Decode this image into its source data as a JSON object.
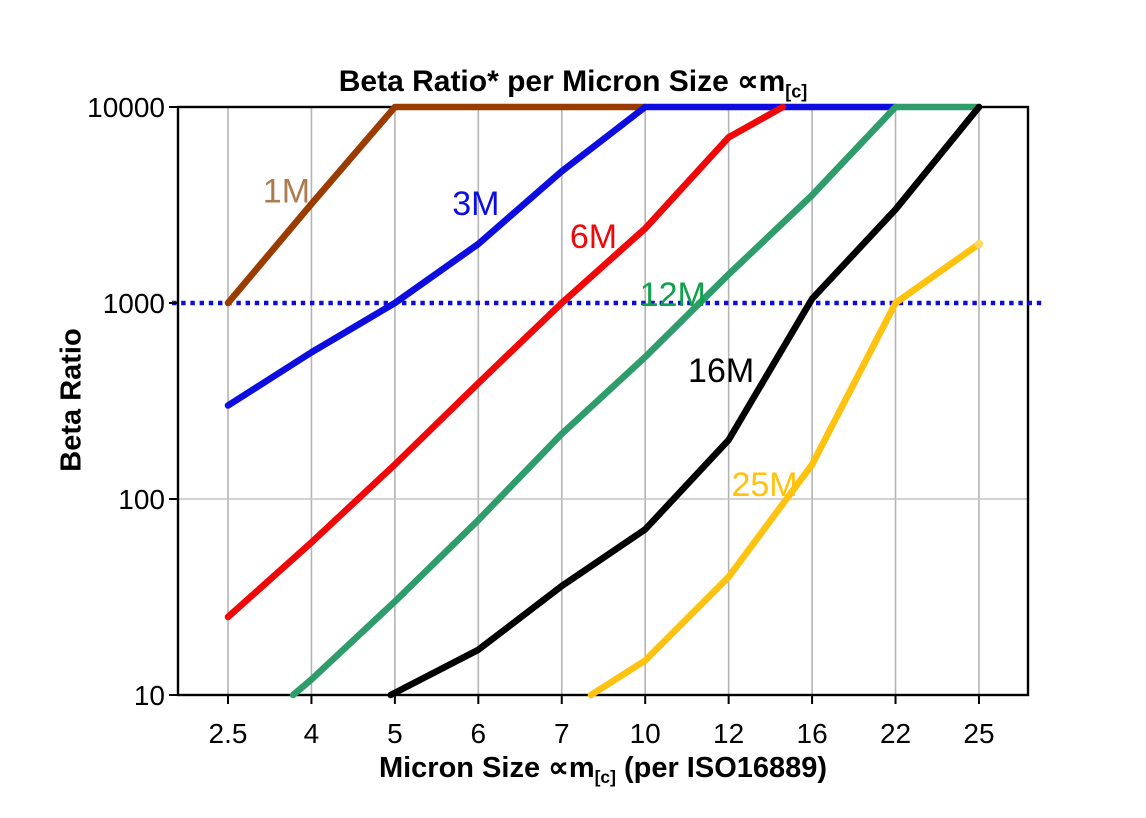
{
  "chart": {
    "title_pre": "Beta Ratio* per Micron Size ∝m",
    "title_sub": "[c]",
    "y_axis_label": "Beta Ratio",
    "x_label_pre": "Micron Size ∝m",
    "x_label_sub": "[c]",
    "x_label_post": " (per ISO16889)"
  },
  "chart_data": {
    "type": "line",
    "title": "Beta Ratio* per Micron Size ∝m[c]",
    "xlabel": "Micron Size ∝m[c] (per ISO16889)",
    "ylabel": "Beta Ratio",
    "x_type": "categorical",
    "categories": [
      "2.5",
      "4",
      "5",
      "6",
      "7",
      "10",
      "12",
      "16",
      "22",
      "25"
    ],
    "y_scale": "log",
    "ylim": [
      10,
      10000
    ],
    "y_tick_labels": [
      "10",
      "100",
      "1000",
      "10000"
    ],
    "grid": {
      "vertical": true,
      "horizontal": true
    },
    "legend_position": "inline-labels",
    "reference_line": {
      "value": 1000,
      "style": "dotted",
      "color": "#0d0dd6"
    },
    "colors": {
      "gridline": "#b4b4b4",
      "axis_border": "#000000",
      "background": "#ffffff"
    },
    "series": [
      {
        "name": "1M",
        "color": "#9a3b00",
        "label_color": "#ab7c50",
        "points": [
          [
            0,
            1000
          ],
          [
            1,
            3200
          ],
          [
            2,
            10000
          ],
          [
            3,
            10000
          ],
          [
            4,
            10000
          ],
          [
            5,
            10000
          ]
        ],
        "label_anchor": {
          "x": 0.7,
          "y": 3700
        }
      },
      {
        "name": "3M",
        "color": "#0d0de0",
        "label_color": "#0d0de0",
        "points": [
          [
            0,
            300
          ],
          [
            1,
            560
          ],
          [
            2,
            1000
          ],
          [
            3,
            2000
          ],
          [
            4,
            4700
          ],
          [
            5,
            10000
          ],
          [
            6,
            10000
          ],
          [
            7,
            10000
          ],
          [
            8,
            10000
          ]
        ],
        "label_anchor": {
          "x": 2.97,
          "y": 3200
        }
      },
      {
        "name": "6M",
        "color": "#ee0808",
        "label_color": "#ee0808",
        "points": [
          [
            0,
            25
          ],
          [
            1,
            60
          ],
          [
            2,
            150
          ],
          [
            3,
            390
          ],
          [
            4,
            1000
          ],
          [
            5,
            2400
          ],
          [
            6,
            7000
          ],
          [
            6.65,
            10000
          ]
        ],
        "label_anchor": {
          "x": 4.38,
          "y": 2170
        }
      },
      {
        "name": "12M",
        "color": "#2f9c6c",
        "label_color": "#10a14c",
        "points": [
          [
            0.78,
            10
          ],
          [
            1,
            12
          ],
          [
            2,
            30
          ],
          [
            3,
            78
          ],
          [
            4,
            215
          ],
          [
            5,
            530
          ],
          [
            6,
            1400
          ],
          [
            7,
            3550
          ],
          [
            8,
            10000
          ],
          [
            9,
            10000
          ]
        ],
        "label_anchor": {
          "x": 5.33,
          "y": 1100
        }
      },
      {
        "name": "16M",
        "color": "#000000",
        "label_color": "#000000",
        "points": [
          [
            1.95,
            10
          ],
          [
            3,
            17
          ],
          [
            4,
            36
          ],
          [
            5,
            70
          ],
          [
            6,
            200
          ],
          [
            7,
            1050
          ],
          [
            8,
            3000
          ],
          [
            9,
            10000
          ]
        ],
        "label_anchor": {
          "x": 5.91,
          "y": 450
        }
      },
      {
        "name": "25M",
        "color": "#ffc20e",
        "label_color": "#ffc20e",
        "points": [
          [
            4.35,
            10
          ],
          [
            5,
            15
          ],
          [
            6,
            40
          ],
          [
            7,
            150
          ],
          [
            8,
            1000
          ],
          [
            9,
            2000
          ]
        ],
        "end_marker": true,
        "label_anchor": {
          "x": 6.43,
          "y": 118
        }
      }
    ]
  }
}
